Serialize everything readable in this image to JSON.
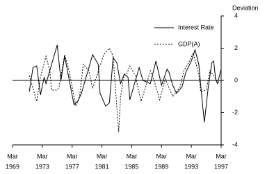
{
  "chart_data": {
    "type": "line",
    "y_label": "Deviation",
    "xlim": [
      1969.25,
      1997.25
    ],
    "xticks": [
      {
        "value": 1969.25,
        "label": [
          "Mar",
          "1969"
        ]
      },
      {
        "value": 1973.25,
        "label": [
          "Mar",
          "1973"
        ]
      },
      {
        "value": 1977.25,
        "label": [
          "Mar",
          "1977"
        ]
      },
      {
        "value": 1981.25,
        "label": [
          "Mar",
          "1981"
        ]
      },
      {
        "value": 1985.25,
        "label": [
          "Mar",
          "1985"
        ]
      },
      {
        "value": 1989.25,
        "label": [
          "Mar",
          "1989"
        ]
      },
      {
        "value": 1993.25,
        "label": [
          "Mar",
          "1993"
        ]
      },
      {
        "value": 1997.25,
        "label": [
          "Mar",
          "1997"
        ]
      }
    ],
    "ylim": [
      -4,
      4
    ],
    "yticks": [
      -4,
      -2,
      0,
      2,
      4
    ],
    "zero_line": true,
    "legend": "upper right",
    "series": [
      {
        "name": "Interest Rate",
        "color": "#000000",
        "dash": "solid",
        "x": [
          1971.5,
          1972.0,
          1972.5,
          1973.0,
          1973.5,
          1973.75,
          1975.25,
          1975.75,
          1976.25,
          1976.75,
          1977.5,
          1978.0,
          1978.5,
          1980.0,
          1980.75,
          1981.0,
          1981.75,
          1982.25,
          1982.75,
          1983.25,
          1983.75,
          1984.25,
          1984.75,
          1985.0,
          1986.25,
          1986.75,
          1987.75,
          1988.5,
          1989.25,
          1990.0,
          1990.25,
          1990.75,
          1991.25,
          1992.0,
          1992.5,
          1993.25,
          1993.75,
          1994.25,
          1994.75,
          1995.0,
          1995.5,
          1996.0,
          1996.25,
          1996.5,
          1996.75,
          1997.25
        ],
        "values": [
          -0.7,
          0.8,
          0.9,
          -0.9,
          0.2,
          -0.2,
          2.2,
          0.0,
          1.5,
          0.3,
          -1.5,
          -1.3,
          -0.8,
          1.6,
          1.0,
          -0.8,
          -1.6,
          -1.4,
          1.4,
          1.1,
          -0.2,
          0.4,
          0.2,
          -1.2,
          0.8,
          0.0,
          -0.2,
          1.2,
          -0.3,
          0.7,
          0.5,
          -0.3,
          -0.8,
          -0.4,
          0.5,
          1.2,
          1.9,
          1.0,
          -1.5,
          -2.6,
          -0.5,
          1.1,
          1.2,
          0.1,
          -0.2,
          0.7
        ]
      },
      {
        "name": "GDP(A)",
        "color": "#000000",
        "dash": "dotted",
        "x": [
          1971.5,
          1972.5,
          1973.0,
          1973.75,
          1974.25,
          1974.5,
          1975.25,
          1975.5,
          1976.25,
          1976.75,
          1977.75,
          1978.25,
          1978.75,
          1979.5,
          1980.0,
          1981.5,
          1982.25,
          1982.75,
          1983.5,
          1983.75,
          1984.25,
          1984.5,
          1985.0,
          1985.75,
          1986.5,
          1987.25,
          1987.75,
          1988.25,
          1989.0,
          1989.75,
          1990.75,
          1991.75,
          1992.25,
          1993.0,
          1993.5,
          1994.25,
          1994.5,
          1995.25,
          1995.75,
          1996.25,
          1996.75,
          1997.25
        ],
        "values": [
          0.3,
          -1.3,
          0.2,
          1.5,
          0.6,
          -0.6,
          -0.6,
          -0.4,
          1.6,
          0.8,
          -1.6,
          -1.0,
          1.0,
          0.6,
          -0.5,
          1.6,
          2.0,
          1.5,
          -3.2,
          -1.0,
          0.4,
          0.3,
          0.9,
          0.3,
          -1.3,
          -0.2,
          0.6,
          0.0,
          -1.2,
          0.1,
          -1.0,
          -0.4,
          0.6,
          1.2,
          1.7,
          0.4,
          -0.7,
          -0.6,
          0.6,
          0.3,
          -0.1,
          -0.1
        ]
      }
    ]
  }
}
